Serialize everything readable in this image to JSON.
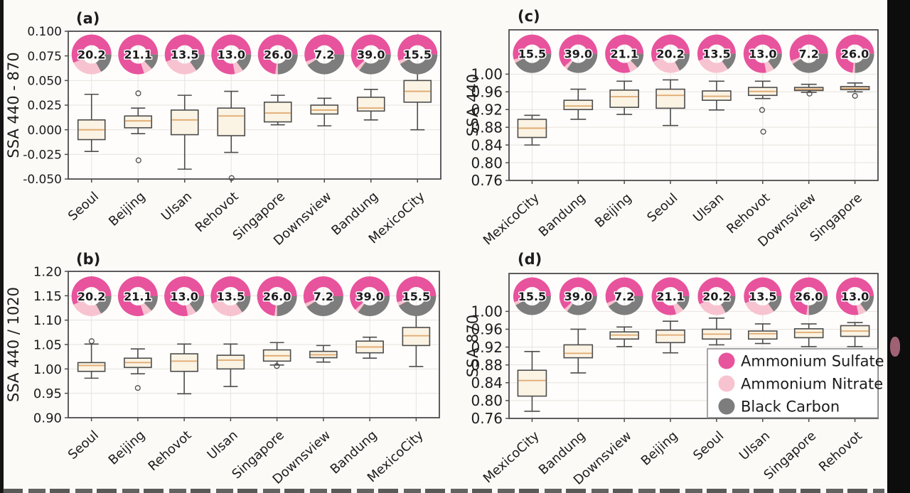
{
  "colors": {
    "sulfate": "#e8539d",
    "nitrate": "#f8c3d0",
    "carbon": "#7d7d7d",
    "box_fill": "#fbf3e3",
    "box_edge": "#4c4c4c",
    "median": "#dfa96f",
    "grid": "#e6e3de",
    "frame": "#4c4c4c",
    "plot_bg": "#fefdfb",
    "text": "#1c1c1c"
  },
  "legend": {
    "items": [
      {
        "label": "Ammonium Sulfate",
        "color_key": "sulfate"
      },
      {
        "label": "Ammonium Nitrate",
        "color_key": "nitrate"
      },
      {
        "label": "Black Carbon",
        "color_key": "carbon"
      }
    ]
  },
  "donuts": {
    "Seoul": {
      "value": "20.2",
      "sulfate": 57,
      "nitrate": 26,
      "carbon": 17
    },
    "Beijing": {
      "value": "21.1",
      "sulfate": 80,
      "nitrate": 7,
      "carbon": 13
    },
    "Ulsan": {
      "value": "13.5",
      "sulfate": 56,
      "nitrate": 29,
      "carbon": 15
    },
    "Rehovot": {
      "value": "13.0",
      "sulfate": 78,
      "nitrate": 7,
      "carbon": 15
    },
    "Singapore": {
      "value": "26.0",
      "sulfate": 73,
      "nitrate": 2,
      "carbon": 25
    },
    "Downsview": {
      "value": "7.2",
      "sulfate": 56,
      "nitrate": 3,
      "carbon": 41
    },
    "Bandung": {
      "value": "39.0",
      "sulfate": 62,
      "nitrate": 3,
      "carbon": 35
    },
    "MexicoCity": {
      "value": "15.5",
      "sulfate": 55,
      "nitrate": 3,
      "carbon": 42
    }
  },
  "chart_data": [
    {
      "id": "a",
      "panel_label": "(a)",
      "type": "box",
      "ylabel": "SSA 440 - 870",
      "ylim": [
        -0.05,
        0.1
      ],
      "grid": true,
      "donut_center_value": 0.0765,
      "yticks": [
        {
          "v": 0.1,
          "t": "0.100"
        },
        {
          "v": 0.075,
          "t": "0.075"
        },
        {
          "v": 0.05,
          "t": "0.050"
        },
        {
          "v": 0.025,
          "t": "0.025"
        },
        {
          "v": 0.0,
          "t": "0.000"
        },
        {
          "v": -0.025,
          "t": "-0.025"
        },
        {
          "v": -0.05,
          "t": "-0.050"
        }
      ],
      "categories": [
        "Seoul",
        "Beijing",
        "Ulsan",
        "Rehovot",
        "Singapore",
        "Downsview",
        "Bandung",
        "MexicoCity"
      ],
      "boxes": [
        {
          "whislo": -0.022,
          "q1": -0.01,
          "med": 0.0,
          "q3": 0.01,
          "whishi": 0.036,
          "outliers": []
        },
        {
          "whislo": -0.004,
          "q1": 0.002,
          "med": 0.009,
          "q3": 0.014,
          "whishi": 0.022,
          "outliers": [
            0.037,
            -0.031
          ]
        },
        {
          "whislo": -0.04,
          "q1": -0.005,
          "med": 0.01,
          "q3": 0.02,
          "whishi": 0.035,
          "outliers": []
        },
        {
          "whislo": -0.023,
          "q1": -0.006,
          "med": 0.014,
          "q3": 0.022,
          "whishi": 0.039,
          "outliers": [
            -0.049
          ]
        },
        {
          "whislo": 0.005,
          "q1": 0.008,
          "med": 0.017,
          "q3": 0.028,
          "whishi": 0.035,
          "outliers": []
        },
        {
          "whislo": 0.004,
          "q1": 0.016,
          "med": 0.02,
          "q3": 0.025,
          "whishi": 0.032,
          "outliers": []
        },
        {
          "whislo": 0.01,
          "q1": 0.019,
          "med": 0.022,
          "q3": 0.033,
          "whishi": 0.041,
          "outliers": []
        },
        {
          "whislo": 0.0,
          "q1": 0.028,
          "med": 0.039,
          "q3": 0.05,
          "whishi": 0.058,
          "outliers": [
            0.094
          ]
        }
      ]
    },
    {
      "id": "b",
      "panel_label": "(b)",
      "type": "box",
      "ylabel": "SSA 440 / 1020",
      "ylim": [
        0.9,
        1.2
      ],
      "grid": true,
      "donut_center_value": 1.149,
      "yticks": [
        {
          "v": 1.2,
          "t": "1.20"
        },
        {
          "v": 1.15,
          "t": "1.15"
        },
        {
          "v": 1.1,
          "t": "1.10"
        },
        {
          "v": 1.05,
          "t": "1.05"
        },
        {
          "v": 1.0,
          "t": "1.00"
        },
        {
          "v": 0.95,
          "t": "0.95"
        },
        {
          "v": 0.9,
          "t": "0.90"
        }
      ],
      "categories": [
        "Seoul",
        "Beijing",
        "Rehovot",
        "Ulsan",
        "Singapore",
        "Downsview",
        "Bandung",
        "MexicoCity"
      ],
      "boxes": [
        {
          "whislo": 0.981,
          "q1": 0.995,
          "med": 1.007,
          "q3": 1.013,
          "whishi": 1.051,
          "outliers": [
            1.057
          ]
        },
        {
          "whislo": 0.99,
          "q1": 1.003,
          "med": 1.013,
          "q3": 1.022,
          "whishi": 1.041,
          "outliers": [
            0.961
          ]
        },
        {
          "whislo": 0.949,
          "q1": 0.995,
          "med": 1.016,
          "q3": 1.031,
          "whishi": 1.051,
          "outliers": []
        },
        {
          "whislo": 0.964,
          "q1": 1.0,
          "med": 1.018,
          "q3": 1.028,
          "whishi": 1.051,
          "outliers": []
        },
        {
          "whislo": 1.008,
          "q1": 1.016,
          "med": 1.027,
          "q3": 1.039,
          "whishi": 1.054,
          "outliers": [
            1.006
          ]
        },
        {
          "whislo": 1.014,
          "q1": 1.023,
          "med": 1.029,
          "q3": 1.036,
          "whishi": 1.048,
          "outliers": []
        },
        {
          "whislo": 1.022,
          "q1": 1.033,
          "med": 1.045,
          "q3": 1.057,
          "whishi": 1.065,
          "outliers": []
        },
        {
          "whislo": 1.005,
          "q1": 1.048,
          "med": 1.068,
          "q3": 1.085,
          "whishi": 1.112,
          "outliers": []
        }
      ]
    },
    {
      "id": "c",
      "panel_label": "(c)",
      "type": "box",
      "ylabel": "SSA 440",
      "ylim": [
        0.76,
        1.1
      ],
      "grid": true,
      "donut_center_value": 1.046,
      "yticks": [
        {
          "v": 1.0,
          "t": "1.00"
        },
        {
          "v": 0.96,
          "t": "0.96"
        },
        {
          "v": 0.92,
          "t": "0.92"
        },
        {
          "v": 0.88,
          "t": "0.88"
        },
        {
          "v": 0.84,
          "t": "0.84"
        },
        {
          "v": 0.8,
          "t": "0.80"
        },
        {
          "v": 0.76,
          "t": "0.76"
        }
      ],
      "categories": [
        "MexicoCity",
        "Bandung",
        "Beijing",
        "Seoul",
        "Ulsan",
        "Rehovot",
        "Downsview",
        "Singapore"
      ],
      "boxes": [
        {
          "whislo": 0.84,
          "q1": 0.857,
          "med": 0.878,
          "q3": 0.898,
          "whishi": 0.907,
          "outliers": []
        },
        {
          "whislo": 0.898,
          "q1": 0.92,
          "med": 0.928,
          "q3": 0.941,
          "whishi": 0.966,
          "outliers": []
        },
        {
          "whislo": 0.909,
          "q1": 0.925,
          "med": 0.949,
          "q3": 0.964,
          "whishi": 0.984,
          "outliers": []
        },
        {
          "whislo": 0.884,
          "q1": 0.923,
          "med": 0.952,
          "q3": 0.966,
          "whishi": 0.987,
          "outliers": []
        },
        {
          "whislo": 0.919,
          "q1": 0.941,
          "med": 0.95,
          "q3": 0.962,
          "whishi": 0.984,
          "outliers": []
        },
        {
          "whislo": 0.945,
          "q1": 0.952,
          "med": 0.961,
          "q3": 0.97,
          "whishi": 0.984,
          "outliers": [
            0.919,
            0.87
          ]
        },
        {
          "whislo": 0.959,
          "q1": 0.963,
          "med": 0.966,
          "q3": 0.97,
          "whishi": 0.977,
          "outliers": [
            0.956
          ]
        },
        {
          "whislo": 0.96,
          "q1": 0.965,
          "med": 0.968,
          "q3": 0.972,
          "whishi": 0.98,
          "outliers": [
            0.951
          ]
        }
      ]
    },
    {
      "id": "d",
      "panel_label": "(d)",
      "type": "box",
      "ylabel": "SSA 870",
      "ylim": [
        0.76,
        1.085
      ],
      "grid": true,
      "donut_center_value": 1.034,
      "yticks": [
        {
          "v": 1.0,
          "t": "1.00"
        },
        {
          "v": 0.96,
          "t": "0.96"
        },
        {
          "v": 0.92,
          "t": "0.92"
        },
        {
          "v": 0.88,
          "t": "0.88"
        },
        {
          "v": 0.84,
          "t": "0.84"
        },
        {
          "v": 0.8,
          "t": "0.80"
        },
        {
          "v": 0.76,
          "t": "0.76"
        }
      ],
      "categories": [
        "MexicoCity",
        "Bandung",
        "Downsview",
        "Beijing",
        "Seoul",
        "Ulsan",
        "Singapore",
        "Rehovot"
      ],
      "boxes": [
        {
          "whislo": 0.776,
          "q1": 0.81,
          "med": 0.845,
          "q3": 0.868,
          "whishi": 0.91,
          "outliers": []
        },
        {
          "whislo": 0.862,
          "q1": 0.896,
          "med": 0.906,
          "q3": 0.925,
          "whishi": 0.96,
          "outliers": []
        },
        {
          "whislo": 0.921,
          "q1": 0.938,
          "med": 0.947,
          "q3": 0.954,
          "whishi": 0.965,
          "outliers": []
        },
        {
          "whislo": 0.907,
          "q1": 0.93,
          "med": 0.947,
          "q3": 0.958,
          "whishi": 0.978,
          "outliers": []
        },
        {
          "whislo": 0.925,
          "q1": 0.938,
          "med": 0.949,
          "q3": 0.96,
          "whishi": 0.985,
          "outliers": []
        },
        {
          "whislo": 0.928,
          "q1": 0.938,
          "med": 0.95,
          "q3": 0.956,
          "whishi": 0.972,
          "outliers": []
        },
        {
          "whislo": 0.921,
          "q1": 0.941,
          "med": 0.953,
          "q3": 0.961,
          "whishi": 0.972,
          "outliers": []
        },
        {
          "whislo": 0.921,
          "q1": 0.944,
          "med": 0.956,
          "q3": 0.968,
          "whishi": 0.975,
          "outliers": []
        }
      ]
    }
  ]
}
